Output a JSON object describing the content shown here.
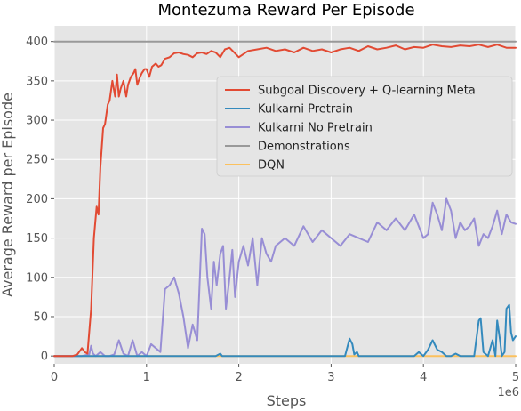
{
  "chart_data": {
    "type": "line",
    "title": "Montezuma Reward Per Episode",
    "xlabel": "Steps",
    "ylabel": "Average Reward per Episode",
    "x_offset_label": "1e6",
    "xlim": [
      0,
      5
    ],
    "ylim": [
      -10,
      420
    ],
    "xticks": [
      0,
      1,
      2,
      3,
      4,
      5
    ],
    "yticks": [
      0,
      50,
      100,
      150,
      200,
      250,
      300,
      350,
      400
    ],
    "grid": true,
    "legend_position": "right",
    "series": [
      {
        "name": "Subgoal Discovery + Q-learning Meta",
        "color": "#e24a33",
        "x": [
          0,
          0.1,
          0.2,
          0.25,
          0.3,
          0.33,
          0.36,
          0.4,
          0.43,
          0.46,
          0.48,
          0.5,
          0.53,
          0.55,
          0.58,
          0.6,
          0.63,
          0.66,
          0.68,
          0.7,
          0.72,
          0.75,
          0.78,
          0.8,
          0.83,
          0.86,
          0.88,
          0.9,
          0.93,
          0.95,
          0.98,
          1.0,
          1.03,
          1.06,
          1.1,
          1.13,
          1.16,
          1.2,
          1.25,
          1.3,
          1.35,
          1.4,
          1.45,
          1.5,
          1.55,
          1.6,
          1.65,
          1.7,
          1.75,
          1.8,
          1.85,
          1.9,
          2.0,
          2.1,
          2.2,
          2.3,
          2.4,
          2.5,
          2.6,
          2.7,
          2.8,
          2.9,
          3.0,
          3.1,
          3.2,
          3.3,
          3.4,
          3.5,
          3.6,
          3.7,
          3.8,
          3.9,
          4.0,
          4.1,
          4.2,
          4.3,
          4.4,
          4.5,
          4.6,
          4.7,
          4.8,
          4.9,
          5.0
        ],
        "values": [
          0,
          0,
          0,
          2,
          10,
          5,
          3,
          60,
          150,
          190,
          180,
          240,
          290,
          295,
          320,
          325,
          350,
          330,
          358,
          330,
          340,
          350,
          330,
          345,
          355,
          360,
          365,
          345,
          355,
          360,
          365,
          365,
          355,
          368,
          372,
          368,
          370,
          378,
          380,
          385,
          386,
          384,
          383,
          380,
          385,
          386,
          384,
          388,
          386,
          380,
          390,
          392,
          380,
          388,
          390,
          392,
          388,
          390,
          386,
          392,
          388,
          390,
          386,
          390,
          392,
          388,
          394,
          390,
          392,
          395,
          390,
          393,
          392,
          396,
          394,
          393,
          395,
          394,
          396,
          393,
          396,
          392,
          392
        ]
      },
      {
        "name": "Kulkarni Pretrain",
        "color": "#348abd",
        "x": [
          0,
          1.5,
          1.55,
          1.6,
          1.65,
          1.7,
          1.75,
          1.8,
          1.82,
          1.85,
          2.5,
          3.0,
          3.1,
          3.15,
          3.2,
          3.23,
          3.25,
          3.28,
          3.3,
          3.5,
          3.8,
          3.9,
          3.95,
          4.0,
          4.05,
          4.1,
          4.15,
          4.2,
          4.25,
          4.3,
          4.35,
          4.4,
          4.45,
          4.5,
          4.55,
          4.6,
          4.62,
          4.65,
          4.7,
          4.75,
          4.78,
          4.8,
          4.83,
          4.85,
          4.88,
          4.9,
          4.93,
          4.95,
          4.97,
          5.0
        ],
        "values": [
          0,
          0,
          0,
          0,
          0,
          0,
          0,
          3,
          0,
          0,
          0,
          0,
          0,
          0,
          22,
          15,
          2,
          5,
          0,
          0,
          0,
          0,
          5,
          0,
          8,
          20,
          8,
          5,
          0,
          0,
          3,
          0,
          0,
          0,
          0,
          45,
          48,
          5,
          0,
          20,
          0,
          45,
          20,
          0,
          5,
          60,
          65,
          30,
          20,
          25
        ]
      },
      {
        "name": "Kulkarni No Pretrain",
        "color": "#988ed5",
        "x": [
          0,
          0.3,
          0.38,
          0.4,
          0.42,
          0.45,
          0.5,
          0.55,
          0.6,
          0.65,
          0.7,
          0.75,
          0.8,
          0.85,
          0.9,
          0.95,
          1.0,
          1.05,
          1.1,
          1.15,
          1.2,
          1.25,
          1.3,
          1.35,
          1.4,
          1.45,
          1.5,
          1.55,
          1.6,
          1.63,
          1.66,
          1.7,
          1.73,
          1.76,
          1.8,
          1.83,
          1.86,
          1.9,
          1.93,
          1.96,
          2.0,
          2.05,
          2.1,
          2.15,
          2.2,
          2.25,
          2.3,
          2.35,
          2.4,
          2.45,
          2.5,
          2.6,
          2.7,
          2.8,
          2.9,
          3.0,
          3.1,
          3.2,
          3.3,
          3.4,
          3.5,
          3.6,
          3.7,
          3.8,
          3.9,
          4.0,
          4.05,
          4.1,
          4.15,
          4.2,
          4.25,
          4.3,
          4.35,
          4.4,
          4.45,
          4.5,
          4.55,
          4.6,
          4.65,
          4.7,
          4.75,
          4.8,
          4.85,
          4.9,
          4.95,
          5.0
        ],
        "values": [
          0,
          0,
          2,
          13,
          3,
          0,
          5,
          0,
          0,
          2,
          20,
          3,
          0,
          20,
          0,
          5,
          0,
          15,
          10,
          5,
          85,
          90,
          100,
          80,
          50,
          10,
          40,
          20,
          162,
          155,
          100,
          60,
          120,
          90,
          130,
          140,
          60,
          100,
          135,
          75,
          120,
          140,
          115,
          150,
          90,
          150,
          130,
          120,
          140,
          145,
          150,
          140,
          165,
          145,
          160,
          150,
          140,
          155,
          150,
          145,
          170,
          160,
          175,
          160,
          180,
          150,
          155,
          195,
          180,
          160,
          200,
          185,
          150,
          170,
          160,
          165,
          175,
          140,
          155,
          150,
          165,
          185,
          155,
          180,
          170,
          168
        ]
      },
      {
        "name": "Demonstrations",
        "color": "#999999",
        "x": [
          0,
          5
        ],
        "values": [
          400,
          400
        ]
      },
      {
        "name": "DQN",
        "color": "#fbc15e",
        "x": [
          0,
          5
        ],
        "values": [
          0,
          0
        ]
      }
    ]
  }
}
